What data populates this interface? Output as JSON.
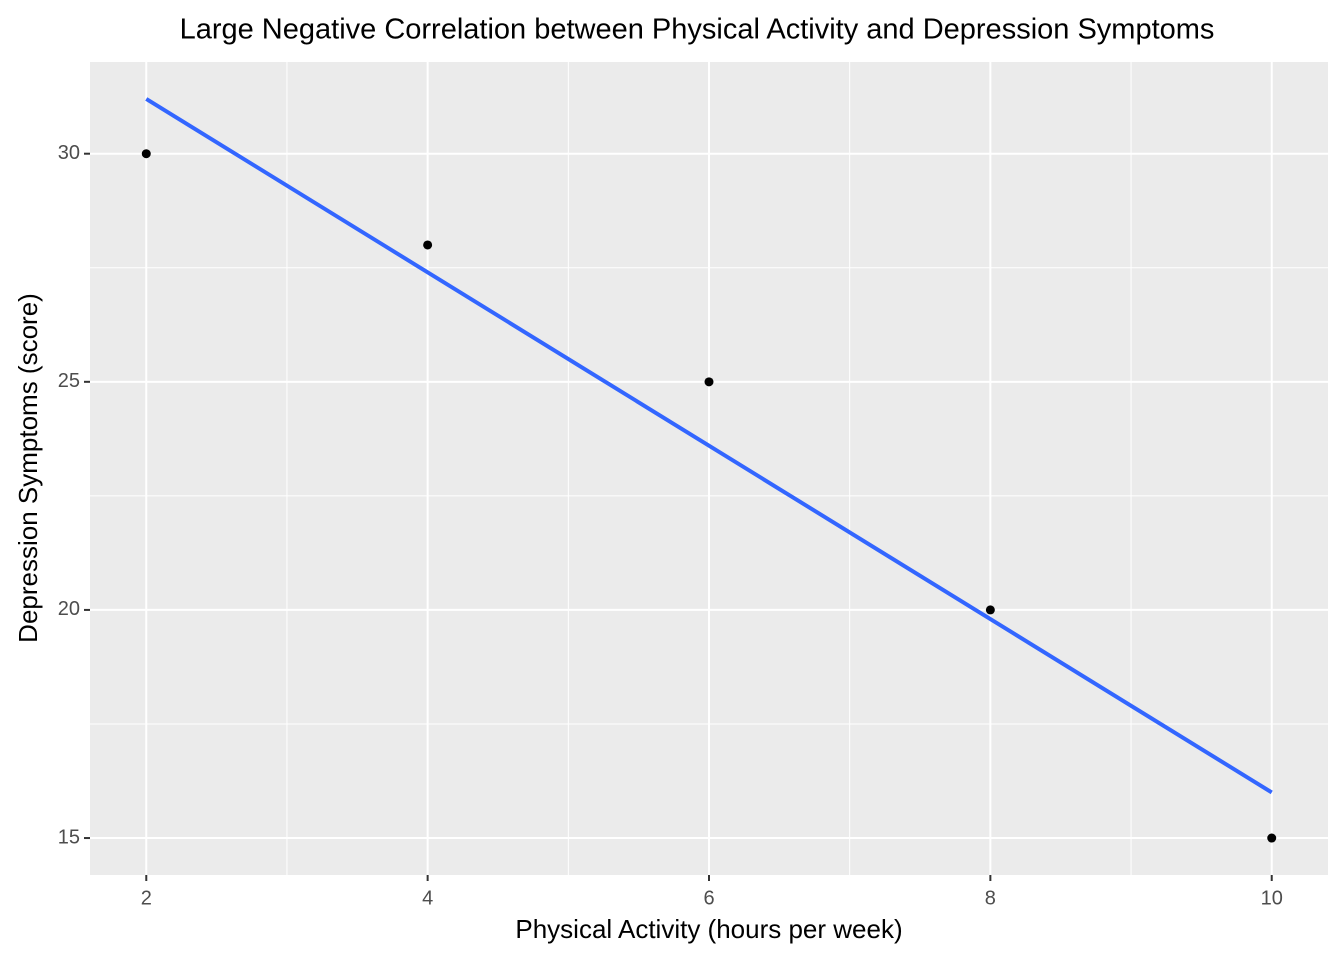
{
  "chart_data": {
    "type": "scatter",
    "title": "Large Negative Correlation between Physical Activity and Depression Symptoms",
    "x_label": "Physical Activity (hours per week)",
    "y_label": "Depression Symptoms (score)",
    "x": [
      2,
      4,
      6,
      8,
      10
    ],
    "values": [
      30,
      28,
      25,
      20,
      15
    ],
    "color": "#000000",
    "trend": {
      "x": [
        2,
        10
      ],
      "values": [
        31.2,
        16
      ],
      "color": "#3366ff"
    },
    "xlim": [
      1.6,
      10.4
    ],
    "ylim": [
      14.19,
      32.01
    ],
    "xticks": [
      2,
      4,
      6,
      8,
      10
    ],
    "yticks": [
      15,
      20,
      25,
      30
    ],
    "x_minor_ticks": [
      3,
      5,
      7,
      9
    ],
    "y_minor_ticks": [
      17.5,
      22.5,
      27.5
    ],
    "grid": true
  }
}
